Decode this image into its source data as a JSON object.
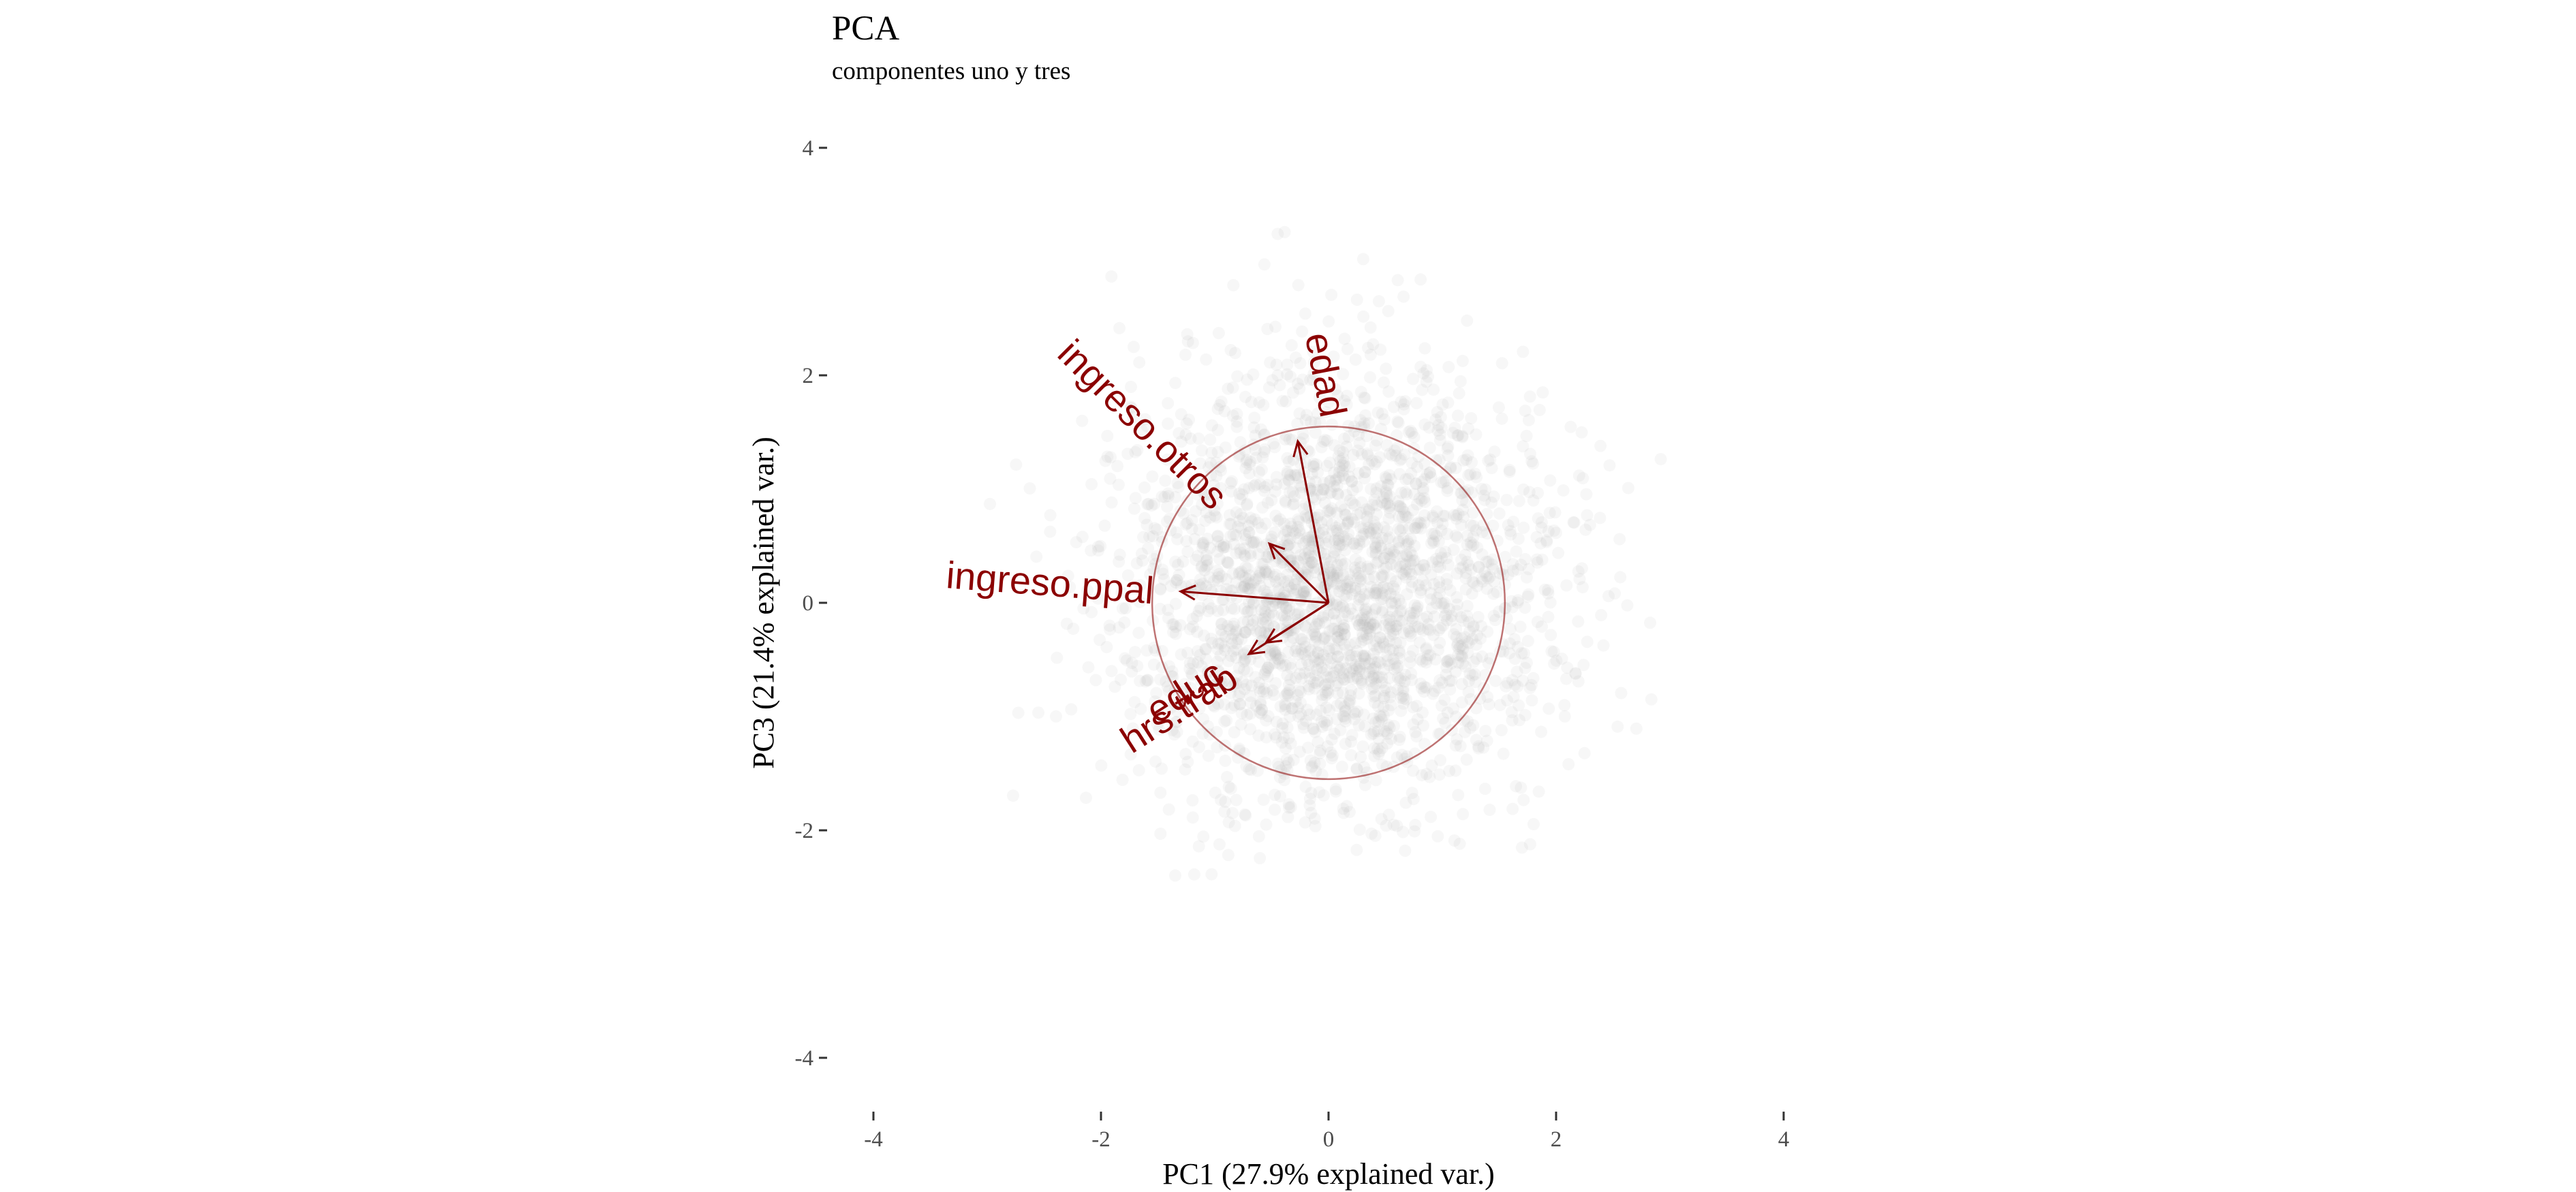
{
  "chart_data": {
    "type": "scatter",
    "subtype": "pca-biplot",
    "title": "PCA",
    "subtitle": "componentes uno y tres",
    "xlabel": "PC1 (27.9% explained var.)",
    "ylabel": "PC3 (21.4% explained var.)",
    "xlim": [
      -4,
      4
    ],
    "ylim": [
      -4,
      4
    ],
    "x_ticks": [
      -4,
      -2,
      0,
      2,
      4
    ],
    "y_ticks": [
      -4,
      -2,
      0,
      2,
      4
    ],
    "grid": false,
    "points": {
      "color": "#b3b3b3",
      "alpha": 0.1,
      "count_rendered": 2500,
      "center": [
        0.05,
        0.1
      ],
      "sd": [
        0.95,
        0.95
      ],
      "range_x": [
        -4,
        3.0
      ],
      "range_y": [
        -2.4,
        4
      ]
    },
    "correlation_circle": {
      "center": [
        0,
        0
      ],
      "radius": 1.55,
      "color": "#8b0000"
    },
    "arrow_color": "#8b0000",
    "loadings": [
      {
        "name": "edad",
        "x": -0.27,
        "y": 1.42
      },
      {
        "name": "ingreso.otros",
        "x": -0.52,
        "y": 0.52
      },
      {
        "name": "ingreso.ppal",
        "x": -1.3,
        "y": 0.1
      },
      {
        "name": "educ",
        "x": -0.55,
        "y": -0.35
      },
      {
        "name": "hrs.trab",
        "x": -0.7,
        "y": -0.45
      }
    ]
  }
}
